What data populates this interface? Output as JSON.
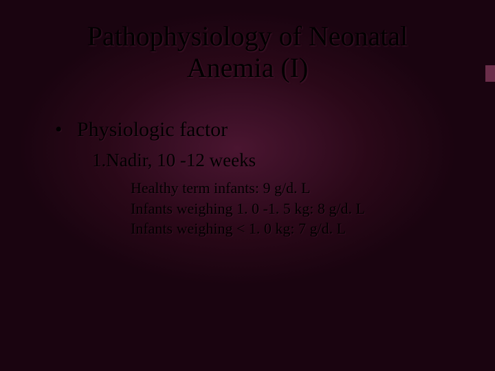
{
  "slide": {
    "title": "Pathophysiology of Neonatal Anemia (I)",
    "bullet_main": "Physiologic factor",
    "sub_item": "1.Nadir, 10 -12 weeks",
    "details": [
      "Healthy term infants: 9 g/d. L",
      "Infants weighing 1. 0 -1. 5 kg: 8 g/d. L",
      "Infants weighing < 1. 0 kg: 7 g/d. L"
    ],
    "colors": {
      "background_center": "#4a1530",
      "background_edge": "#1a0410",
      "text": "#000000",
      "accent": "#6b2e4a"
    },
    "typography": {
      "title_fontsize": 40,
      "bullet_fontsize": 30,
      "sub_fontsize": 27,
      "detail_fontsize": 22,
      "font_family": "Times New Roman"
    }
  }
}
